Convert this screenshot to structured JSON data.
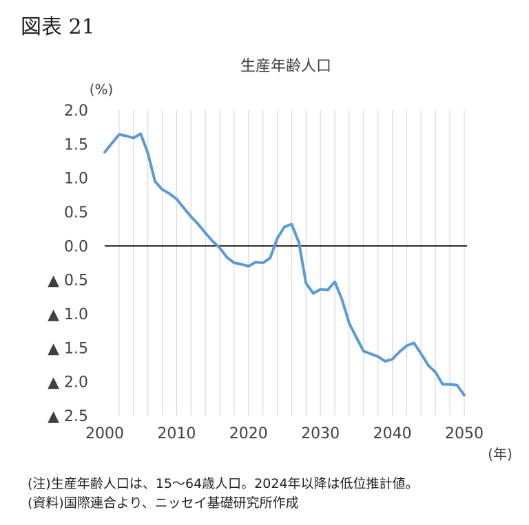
{
  "figure_label": "図表 21",
  "chart_data": {
    "type": "line",
    "title": "生産年齢人口",
    "ylabel": "(%)",
    "xlabel": "(年)",
    "ylim": [
      -2.5,
      2.0
    ],
    "xlim": [
      2000,
      2050
    ],
    "grid": "vertical",
    "x_ticks": [
      2000,
      2010,
      2020,
      2030,
      2040,
      2050
    ],
    "x_tick_labels": [
      "2000",
      "2010",
      "2020",
      "2030",
      "2040",
      "2050"
    ],
    "y_ticks": [
      2.0,
      1.5,
      1.0,
      0.5,
      0.0,
      -0.5,
      -1.0,
      -1.5,
      -2.0,
      -2.5
    ],
    "y_tick_labels": [
      "2.0",
      "1.5",
      "1.0",
      "0.5",
      "0.0",
      "▲ 0.5",
      "▲ 1.0",
      "▲ 1.5",
      "▲ 2.0",
      "▲ 2.5"
    ],
    "line_color": "#5b9bd5",
    "zero_line_color": "#000000",
    "series": [
      {
        "x": [
          2000,
          2001,
          2002,
          2003,
          2004,
          2005,
          2006,
          2007,
          2008,
          2009,
          2010,
          2011,
          2012,
          2013,
          2014,
          2015,
          2016,
          2017,
          2018,
          2019,
          2020,
          2021,
          2022,
          2023,
          2024,
          2025,
          2026,
          2027,
          2028,
          2029,
          2030,
          2031,
          2032,
          2033,
          2034,
          2035,
          2036,
          2037,
          2038,
          2039,
          2040,
          2041,
          2042,
          2043,
          2044,
          2045,
          2046,
          2047,
          2048,
          2049,
          2050
        ],
        "values": [
          1.38,
          1.51,
          1.64,
          1.62,
          1.59,
          1.65,
          1.37,
          0.95,
          0.83,
          0.77,
          0.69,
          0.56,
          0.43,
          0.32,
          0.19,
          0.07,
          -0.03,
          -0.17,
          -0.25,
          -0.27,
          -0.3,
          -0.24,
          -0.25,
          -0.18,
          0.11,
          0.28,
          0.32,
          0.05,
          -0.55,
          -0.7,
          -0.64,
          -0.65,
          -0.53,
          -0.79,
          -1.14,
          -1.35,
          -1.55,
          -1.59,
          -1.63,
          -1.7,
          -1.67,
          -1.56,
          -1.47,
          -1.43,
          -1.59,
          -1.76,
          -1.86,
          -2.04,
          -2.04,
          -2.05,
          -2.2
        ]
      }
    ]
  },
  "notes": [
    "(注)生産年齢人口は、15～64歳人口。2024年以降は低位推計値。",
    "(資料)国際連合より、ニッセイ基礎研究所作成"
  ]
}
